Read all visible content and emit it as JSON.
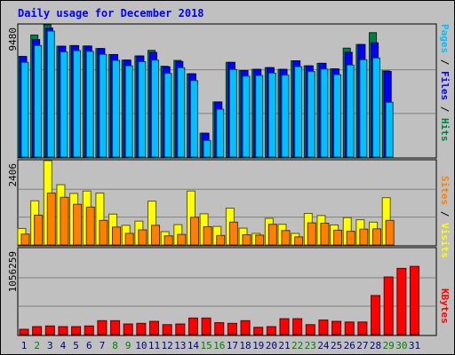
{
  "title": "Daily usage for December 2018",
  "colors": {
    "background": "#c0c0c0",
    "frame_border": "#000000",
    "title_text": "#0000ff",
    "hits": "#008040",
    "files": "#0000ff",
    "pages": "#00c0ff",
    "visits": "#ffff00",
    "sites": "#ff8000",
    "kbytes": "#ff0000",
    "weekend_label": "#008000",
    "weekday_label": "#000080"
  },
  "chart_data": [
    {
      "type": "bar",
      "name": "hits-files-pages",
      "ymax_label": "9480",
      "ylim": [
        0,
        9480
      ],
      "legend": [
        {
          "text": "Pages",
          "color": "#00c0ff"
        },
        {
          "text": " / ",
          "color": "#000000"
        },
        {
          "text": "Files",
          "color": "#0000ff"
        },
        {
          "text": " / ",
          "color": "#000000"
        },
        {
          "text": "Hits",
          "color": "#008040"
        }
      ],
      "series": [
        {
          "key": "hits",
          "values": [
            7210,
            8750,
            9480,
            7950,
            7990,
            7960,
            7780,
            7350,
            6950,
            7250,
            7650,
            6510,
            6930,
            5970,
            1710,
            3950,
            6790,
            6200,
            6290,
            6410,
            6290,
            6900,
            6540,
            6720,
            6320,
            7810,
            8070,
            8920,
            6180,
            0,
            0
          ]
        },
        {
          "key": "files",
          "values": [
            7210,
            8420,
            9250,
            7950,
            7990,
            7960,
            7780,
            7350,
            6950,
            7250,
            7500,
            6470,
            6850,
            5970,
            1710,
            3950,
            6790,
            6200,
            6290,
            6410,
            6290,
            6900,
            6540,
            6720,
            6320,
            7510,
            8070,
            8190,
            6140,
            0,
            0
          ]
        },
        {
          "key": "pages",
          "values": [
            6790,
            8000,
            9030,
            7540,
            7630,
            7580,
            7360,
            6930,
            6540,
            6840,
            6950,
            6000,
            6400,
            5480,
            1190,
            3430,
            6280,
            5800,
            5850,
            6020,
            5870,
            6480,
            6130,
            6310,
            5910,
            6600,
            6980,
            7100,
            3930,
            0,
            0
          ]
        }
      ]
    },
    {
      "type": "bar",
      "name": "visits-sites",
      "ymax_label": "2406",
      "ylim": [
        0,
        2406
      ],
      "legend": [
        {
          "text": "Sites",
          "color": "#ff8000"
        },
        {
          "text": " / ",
          "color": "#000000"
        },
        {
          "text": "Visits",
          "color": "#ffff00"
        }
      ],
      "series": [
        {
          "key": "visits",
          "values": [
            470,
            1260,
            2406,
            1720,
            1470,
            1540,
            1480,
            880,
            560,
            680,
            1250,
            380,
            580,
            1540,
            890,
            530,
            1050,
            480,
            330,
            760,
            590,
            330,
            900,
            840,
            570,
            780,
            720,
            650,
            1350,
            0,
            0
          ]
        },
        {
          "key": "sites",
          "values": [
            310,
            850,
            1480,
            1360,
            1160,
            1080,
            700,
            510,
            330,
            430,
            560,
            260,
            300,
            790,
            520,
            270,
            650,
            290,
            280,
            590,
            410,
            230,
            630,
            620,
            420,
            390,
            450,
            460,
            700,
            0,
            0
          ]
        }
      ]
    },
    {
      "type": "bar",
      "name": "kbytes",
      "ymax_label": "1056259",
      "ylim": [
        0,
        1300000
      ],
      "legend": [
        {
          "text": "KBytes",
          "color": "#ff0000"
        }
      ],
      "series": [
        {
          "key": "kbytes",
          "values": [
            80000,
            120000,
            130000,
            120000,
            120000,
            130000,
            210000,
            210000,
            160000,
            170000,
            200000,
            150000,
            160000,
            250000,
            250000,
            180000,
            170000,
            210000,
            110000,
            120000,
            240000,
            240000,
            150000,
            220000,
            200000,
            190000,
            190000,
            590000,
            870000,
            1000000,
            1030000
          ]
        }
      ]
    }
  ],
  "days": [
    "1",
    "2",
    "3",
    "4",
    "5",
    "6",
    "7",
    "8",
    "9",
    "10",
    "11",
    "12",
    "13",
    "14",
    "15",
    "16",
    "17",
    "18",
    "19",
    "20",
    "21",
    "22",
    "23",
    "24",
    "25",
    "26",
    "27",
    "28",
    "29",
    "30",
    "31"
  ],
  "weekend_days": [
    2,
    8,
    9,
    15,
    16,
    22,
    23,
    29,
    30
  ]
}
